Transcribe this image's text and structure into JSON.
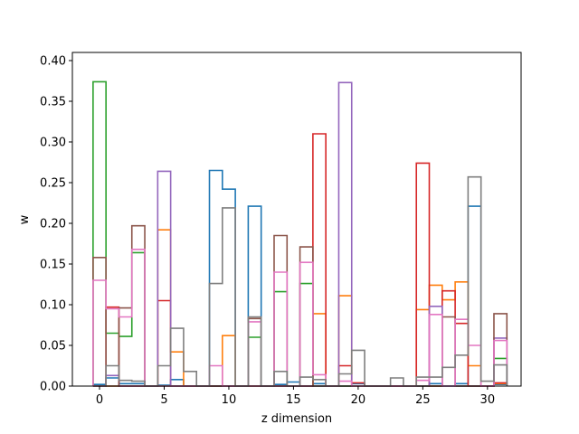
{
  "chart_data": {
    "type": "line",
    "style": "step-histogram",
    "title": "",
    "xlabel": "z dimension",
    "ylabel": "w",
    "xlim": [
      -2.1,
      32.6
    ],
    "ylim": [
      0,
      0.41
    ],
    "xticks": [
      0,
      5,
      10,
      15,
      20,
      25,
      30
    ],
    "yticks": [
      0.0,
      0.05,
      0.1,
      0.15,
      0.2,
      0.25,
      0.3,
      0.35,
      0.4
    ],
    "ytick_labels": [
      "0.00",
      "0.05",
      "0.10",
      "0.15",
      "0.20",
      "0.25",
      "0.30",
      "0.35",
      "0.40"
    ],
    "grid": false,
    "x": [
      0,
      1,
      2,
      3,
      4,
      5,
      6,
      7,
      8,
      9,
      10,
      11,
      12,
      13,
      14,
      15,
      16,
      17,
      18,
      19,
      20,
      21,
      22,
      23,
      24,
      25,
      26,
      27,
      28,
      29,
      30,
      31
    ],
    "series": [
      {
        "color": "#1f77b4",
        "values": [
          0.002,
          0.01,
          0.003,
          0.003,
          0.0,
          0.001,
          0.008,
          0.0,
          0.0,
          0.265,
          0.242,
          0.0,
          0.221,
          0.0,
          0.002,
          0.005,
          0.0,
          0.003,
          0.0,
          0.0,
          0.003,
          0.0,
          0.0,
          0.0,
          0.0,
          0.0,
          0.003,
          0.0,
          0.003,
          0.221,
          0.0,
          0.002
        ]
      },
      {
        "color": "#ff7f0e",
        "values": [
          0.0,
          0.0,
          0.0,
          0.0,
          0.0,
          0.192,
          0.042,
          0.0,
          0.0,
          0.0,
          0.062,
          0.0,
          0.0,
          0.0,
          0.0,
          0.0,
          0.0,
          0.089,
          0.0,
          0.111,
          0.0,
          0.0,
          0.0,
          0.0,
          0.0,
          0.094,
          0.124,
          0.106,
          0.128,
          0.025,
          0.0,
          0.003
        ]
      },
      {
        "color": "#2ca02c",
        "values": [
          0.374,
          0.065,
          0.061,
          0.164,
          0.0,
          0.0,
          0.0,
          0.0,
          0.0,
          0.0,
          0.0,
          0.0,
          0.06,
          0.0,
          0.116,
          0.0,
          0.126,
          0.0,
          0.0,
          0.0,
          0.0,
          0.0,
          0.0,
          0.0,
          0.0,
          0.0,
          0.0,
          0.0,
          0.0,
          0.0,
          0.0,
          0.034
        ]
      },
      {
        "color": "#d62728",
        "values": [
          0.0,
          0.097,
          0.0,
          0.0,
          0.0,
          0.105,
          0.0,
          0.0,
          0.0,
          0.0,
          0.0,
          0.0,
          0.0,
          0.0,
          0.0,
          0.0,
          0.0,
          0.31,
          0.0,
          0.025,
          0.004,
          0.0,
          0.0,
          0.0,
          0.0,
          0.274,
          0.0,
          0.117,
          0.077,
          0.0,
          0.0,
          0.004
        ]
      },
      {
        "color": "#9467bd",
        "values": [
          0.0,
          0.013,
          0.0,
          0.0,
          0.0,
          0.264,
          0.0,
          0.0,
          0.0,
          0.0,
          0.0,
          0.0,
          0.0,
          0.0,
          0.0,
          0.0,
          0.0,
          0.0,
          0.0,
          0.373,
          0.0,
          0.0,
          0.0,
          0.0,
          0.0,
          0.0,
          0.098,
          0.0,
          0.0,
          0.0,
          0.0,
          0.059
        ]
      },
      {
        "color": "#8c564b",
        "values": [
          0.158,
          0.0,
          0.096,
          0.197,
          0.0,
          0.0,
          0.0,
          0.0,
          0.0,
          0.0,
          0.0,
          0.0,
          0.083,
          0.0,
          0.185,
          0.0,
          0.171,
          0.0,
          0.0,
          0.0,
          0.0,
          0.0,
          0.0,
          0.0,
          0.0,
          0.0,
          0.0,
          0.085,
          0.0,
          0.0,
          0.0,
          0.089
        ]
      },
      {
        "color": "#e377c2",
        "values": [
          0.13,
          0.095,
          0.085,
          0.168,
          0.0,
          0.0,
          0.0,
          0.0,
          0.0,
          0.025,
          0.0,
          0.0,
          0.079,
          0.0,
          0.14,
          0.0,
          0.152,
          0.014,
          0.0,
          0.006,
          0.0,
          0.0,
          0.0,
          0.0,
          0.0,
          0.007,
          0.088,
          0.0,
          0.082,
          0.05,
          0.0,
          0.056
        ]
      },
      {
        "color": "#7f7f7f",
        "values": [
          0.0,
          0.025,
          0.007,
          0.006,
          0.0,
          0.025,
          0.071,
          0.018,
          0.0,
          0.126,
          0.219,
          0.0,
          0.085,
          0.0,
          0.018,
          0.0,
          0.011,
          0.008,
          0.0,
          0.015,
          0.044,
          0.0,
          0.0,
          0.01,
          0.0,
          0.011,
          0.011,
          0.023,
          0.038,
          0.257,
          0.006,
          0.026
        ]
      }
    ]
  }
}
